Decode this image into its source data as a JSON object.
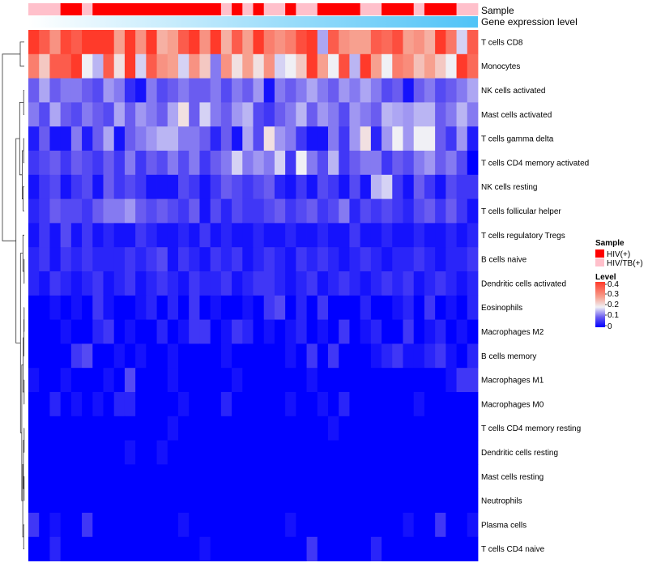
{
  "chart_data": {
    "type": "heatmap",
    "title": "",
    "annotations": {
      "sample": {
        "label": "Sample",
        "categories": [
          "HIV(+)",
          "HIV/TB(+)"
        ],
        "colors": {
          "HIV(+)": "#ff0000",
          "HIV/TB(+)": "#ffc0cb"
        },
        "per_column": [
          "HIV/TB(+)",
          "HIV/TB(+)",
          "HIV/TB(+)",
          "HIV(+)",
          "HIV(+)",
          "HIV/TB(+)",
          "HIV(+)",
          "HIV(+)",
          "HIV(+)",
          "HIV(+)",
          "HIV(+)",
          "HIV(+)",
          "HIV(+)",
          "HIV(+)",
          "HIV(+)",
          "HIV(+)",
          "HIV(+)",
          "HIV(+)",
          "HIV/TB(+)",
          "HIV(+)",
          "HIV/TB(+)",
          "HIV(+)",
          "HIV/TB(+)",
          "HIV/TB(+)",
          "HIV(+)",
          "HIV/TB(+)",
          "HIV/TB(+)",
          "HIV(+)",
          "HIV(+)",
          "HIV(+)",
          "HIV(+)",
          "HIV/TB(+)",
          "HIV/TB(+)",
          "HIV(+)",
          "HIV(+)",
          "HIV(+)",
          "HIV/TB(+)",
          "HIV(+)",
          "HIV(+)",
          "HIV(+)",
          "HIV/TB(+)",
          "HIV/TB(+)"
        ]
      },
      "gene_expression": {
        "label": "Gene expression level",
        "gradient": [
          "#ffffff",
          "#4fc3f7"
        ]
      }
    },
    "rows": [
      "T cells CD8",
      "Monocytes",
      "NK cells activated",
      "Mast cells activated",
      "T cells gamma delta",
      "T cells CD4 memory activated",
      "NK cells resting",
      "T cells follicular helper",
      "T cells regulatory  Tregs",
      "B cells naive",
      "Dendritic cells activated",
      "Eosinophils",
      "Macrophages M2",
      "B cells memory",
      "Macrophages M1",
      "Macrophages M0",
      "T cells CD4 memory resting",
      "Dendritic cells resting",
      "Mast cells resting",
      "Neutrophils",
      "Plasma cells",
      "T cells CD4 naive"
    ],
    "n_columns": 42,
    "row_means": [
      0.38,
      0.3,
      0.12,
      0.13,
      0.08,
      0.09,
      0.06,
      0.08,
      0.03,
      0.05,
      0.05,
      0.03,
      0.03,
      0.03,
      0.02,
      0.02,
      0.01,
      0.01,
      0.0,
      0.0,
      0.02,
      0.01
    ],
    "values": [
      [
        0.45,
        0.4,
        0.32,
        0.43,
        0.4,
        0.45,
        0.45,
        0.45,
        0.3,
        0.45,
        0.32,
        0.45,
        0.28,
        0.3,
        0.4,
        0.45,
        0.32,
        0.45,
        0.28,
        0.4,
        0.3,
        0.45,
        0.35,
        0.32,
        0.35,
        0.42,
        0.45,
        0.15,
        0.4,
        0.32,
        0.3,
        0.3,
        0.4,
        0.38,
        0.42,
        0.3,
        0.32,
        0.28,
        0.45,
        0.36,
        0.18,
        0.4
      ],
      [
        0.35,
        0.25,
        0.4,
        0.4,
        0.45,
        0.2,
        0.16,
        0.4,
        0.22,
        0.45,
        0.18,
        0.4,
        0.32,
        0.3,
        0.18,
        0.32,
        0.25,
        0.12,
        0.32,
        0.22,
        0.3,
        0.22,
        0.32,
        0.18,
        0.2,
        0.25,
        0.45,
        0.3,
        0.2,
        0.42,
        0.16,
        0.45,
        0.3,
        0.2,
        0.35,
        0.33,
        0.26,
        0.3,
        0.25,
        0.2,
        0.45,
        0.38
      ],
      [
        0.1,
        0.15,
        0.1,
        0.12,
        0.12,
        0.1,
        0.08,
        0.14,
        0.12,
        0.05,
        0.02,
        0.12,
        0.08,
        0.1,
        0.12,
        0.1,
        0.1,
        0.12,
        0.08,
        0.12,
        0.1,
        0.14,
        0.02,
        0.12,
        0.1,
        0.12,
        0.15,
        0.12,
        0.1,
        0.14,
        0.12,
        0.15,
        0.12,
        0.08,
        0.1,
        0.02,
        0.1,
        0.12,
        0.08,
        0.1,
        0.12,
        0.15
      ],
      [
        0.12,
        0.08,
        0.15,
        0.1,
        0.08,
        0.12,
        0.1,
        0.08,
        0.15,
        0.1,
        0.14,
        0.12,
        0.1,
        0.15,
        0.22,
        0.1,
        0.18,
        0.12,
        0.1,
        0.14,
        0.16,
        0.08,
        0.06,
        0.1,
        0.12,
        0.16,
        0.1,
        0.14,
        0.12,
        0.08,
        0.14,
        0.12,
        0.1,
        0.16,
        0.15,
        0.14,
        0.16,
        0.16,
        0.1,
        0.12,
        0.16,
        0.12
      ],
      [
        0.03,
        0.1,
        0.02,
        0.02,
        0.12,
        0.03,
        0.1,
        0.15,
        0.02,
        0.1,
        0.12,
        0.14,
        0.16,
        0.16,
        0.12,
        0.12,
        0.1,
        0.04,
        0.1,
        0.02,
        0.15,
        0.08,
        0.22,
        0.14,
        0.12,
        0.06,
        0.02,
        0.02,
        0.12,
        0.06,
        0.14,
        0.22,
        0.04,
        0.14,
        0.2,
        0.14,
        0.2,
        0.2,
        0.1,
        0.06,
        0.14,
        0.03
      ],
      [
        0.06,
        0.08,
        0.1,
        0.06,
        0.1,
        0.08,
        0.06,
        0.1,
        0.06,
        0.12,
        0.06,
        0.1,
        0.08,
        0.12,
        0.08,
        0.12,
        0.06,
        0.1,
        0.12,
        0.18,
        0.12,
        0.14,
        0.12,
        0.18,
        0.06,
        0.2,
        0.12,
        0.08,
        0.16,
        0.06,
        0.1,
        0.12,
        0.12,
        0.06,
        0.1,
        0.08,
        0.12,
        0.14,
        0.1,
        0.12,
        0.08,
        0.0
      ],
      [
        0.02,
        0.06,
        0.08,
        0.02,
        0.06,
        0.08,
        0.02,
        0.1,
        0.06,
        0.08,
        0.06,
        0.02,
        0.02,
        0.02,
        0.08,
        0.06,
        0.02,
        0.06,
        0.1,
        0.08,
        0.06,
        0.08,
        0.1,
        0.04,
        0.02,
        0.06,
        0.02,
        0.08,
        0.06,
        0.02,
        0.08,
        0.02,
        0.16,
        0.18,
        0.06,
        0.02,
        0.1,
        0.06,
        0.02,
        0.08,
        0.06,
        0.06
      ],
      [
        0.04,
        0.06,
        0.1,
        0.08,
        0.08,
        0.06,
        0.1,
        0.12,
        0.12,
        0.14,
        0.1,
        0.08,
        0.1,
        0.08,
        0.06,
        0.1,
        0.02,
        0.08,
        0.04,
        0.08,
        0.06,
        0.06,
        0.08,
        0.1,
        0.06,
        0.08,
        0.1,
        0.06,
        0.08,
        0.12,
        0.04,
        0.08,
        0.06,
        0.08,
        0.06,
        0.04,
        0.08,
        0.1,
        0.06,
        0.1,
        0.06,
        0.02
      ],
      [
        0.02,
        0.06,
        0.02,
        0.08,
        0.02,
        0.06,
        0.02,
        0.04,
        0.02,
        0.02,
        0.06,
        0.04,
        0.02,
        0.02,
        0.04,
        0.02,
        0.06,
        0.02,
        0.04,
        0.02,
        0.02,
        0.04,
        0.02,
        0.02,
        0.04,
        0.02,
        0.02,
        0.04,
        0.02,
        0.02,
        0.06,
        0.02,
        0.02,
        0.04,
        0.02,
        0.02,
        0.04,
        0.02,
        0.02,
        0.04,
        0.02,
        0.04
      ],
      [
        0.04,
        0.06,
        0.02,
        0.06,
        0.04,
        0.06,
        0.04,
        0.04,
        0.04,
        0.06,
        0.04,
        0.06,
        0.08,
        0.02,
        0.06,
        0.04,
        0.02,
        0.06,
        0.04,
        0.06,
        0.02,
        0.04,
        0.06,
        0.04,
        0.02,
        0.06,
        0.04,
        0.06,
        0.04,
        0.02,
        0.04,
        0.06,
        0.04,
        0.02,
        0.04,
        0.04,
        0.06,
        0.04,
        0.02,
        0.04,
        0.04,
        0.06
      ],
      [
        0.04,
        0.02,
        0.06,
        0.04,
        0.02,
        0.04,
        0.06,
        0.02,
        0.04,
        0.06,
        0.02,
        0.04,
        0.06,
        0.04,
        0.02,
        0.06,
        0.04,
        0.04,
        0.06,
        0.02,
        0.04,
        0.06,
        0.06,
        0.04,
        0.02,
        0.04,
        0.06,
        0.02,
        0.04,
        0.06,
        0.04,
        0.02,
        0.04,
        0.06,
        0.04,
        0.06,
        0.02,
        0.04,
        0.06,
        0.04,
        0.02,
        0.04
      ],
      [
        0.0,
        0.0,
        0.02,
        0.0,
        0.02,
        0.0,
        0.06,
        0.02,
        0.0,
        0.0,
        0.02,
        0.04,
        0.0,
        0.04,
        0.0,
        0.06,
        0.0,
        0.02,
        0.0,
        0.0,
        0.02,
        0.0,
        0.06,
        0.08,
        0.0,
        0.04,
        0.0,
        0.06,
        0.0,
        0.0,
        0.0,
        0.04,
        0.0,
        0.0,
        0.02,
        0.04,
        0.0,
        0.06,
        0.0,
        0.02,
        0.0,
        0.04
      ],
      [
        0.0,
        0.0,
        0.0,
        0.02,
        0.0,
        0.0,
        0.04,
        0.06,
        0.0,
        0.02,
        0.0,
        0.0,
        0.04,
        0.0,
        0.02,
        0.06,
        0.06,
        0.0,
        0.02,
        0.06,
        0.04,
        0.0,
        0.02,
        0.0,
        0.02,
        0.04,
        0.0,
        0.02,
        0.0,
        0.06,
        0.0,
        0.02,
        0.04,
        0.0,
        0.0,
        0.06,
        0.0,
        0.02,
        0.04,
        0.0,
        0.02,
        0.0
      ],
      [
        0.0,
        0.0,
        0.0,
        0.0,
        0.06,
        0.08,
        0.0,
        0.0,
        0.02,
        0.0,
        0.02,
        0.0,
        0.0,
        0.02,
        0.0,
        0.0,
        0.0,
        0.0,
        0.02,
        0.0,
        0.0,
        0.0,
        0.0,
        0.0,
        0.02,
        0.0,
        0.06,
        0.0,
        0.06,
        0.0,
        0.0,
        0.0,
        0.02,
        0.04,
        0.06,
        0.02,
        0.02,
        0.04,
        0.06,
        0.02,
        0.0,
        0.04
      ],
      [
        0.02,
        0.0,
        0.0,
        0.02,
        0.0,
        0.0,
        0.0,
        0.02,
        0.0,
        0.08,
        0.0,
        0.0,
        0.0,
        0.02,
        0.0,
        0.0,
        0.0,
        0.0,
        0.0,
        0.02,
        0.0,
        0.0,
        0.0,
        0.0,
        0.0,
        0.0,
        0.02,
        0.0,
        0.0,
        0.0,
        0.0,
        0.0,
        0.0,
        0.0,
        0.0,
        0.0,
        0.0,
        0.0,
        0.0,
        0.02,
        0.06,
        0.06
      ],
      [
        0.0,
        0.0,
        0.04,
        0.0,
        0.02,
        0.0,
        0.02,
        0.0,
        0.04,
        0.04,
        0.0,
        0.0,
        0.0,
        0.0,
        0.02,
        0.0,
        0.0,
        0.0,
        0.04,
        0.0,
        0.0,
        0.0,
        0.0,
        0.0,
        0.02,
        0.0,
        0.0,
        0.02,
        0.0,
        0.04,
        0.0,
        0.0,
        0.0,
        0.0,
        0.0,
        0.0,
        0.02,
        0.0,
        0.0,
        0.0,
        0.0,
        0.0
      ],
      [
        0.0,
        0.0,
        0.0,
        0.0,
        0.0,
        0.0,
        0.0,
        0.0,
        0.0,
        0.0,
        0.0,
        0.0,
        0.0,
        0.02,
        0.0,
        0.0,
        0.0,
        0.0,
        0.0,
        0.0,
        0.0,
        0.0,
        0.0,
        0.0,
        0.0,
        0.0,
        0.0,
        0.0,
        0.02,
        0.0,
        0.0,
        0.0,
        0.0,
        0.0,
        0.0,
        0.0,
        0.0,
        0.0,
        0.0,
        0.0,
        0.0,
        0.0
      ],
      [
        0.0,
        0.0,
        0.0,
        0.0,
        0.0,
        0.0,
        0.0,
        0.0,
        0.0,
        0.02,
        0.0,
        0.0,
        0.02,
        0.0,
        0.0,
        0.0,
        0.0,
        0.0,
        0.0,
        0.0,
        0.0,
        0.0,
        0.0,
        0.0,
        0.0,
        0.0,
        0.0,
        0.0,
        0.0,
        0.0,
        0.0,
        0.0,
        0.0,
        0.0,
        0.0,
        0.0,
        0.0,
        0.0,
        0.0,
        0.0,
        0.0,
        0.0
      ],
      [
        0.0,
        0.0,
        0.0,
        0.0,
        0.0,
        0.0,
        0.0,
        0.0,
        0.0,
        0.0,
        0.0,
        0.0,
        0.0,
        0.0,
        0.0,
        0.0,
        0.0,
        0.0,
        0.0,
        0.0,
        0.0,
        0.0,
        0.0,
        0.0,
        0.0,
        0.0,
        0.0,
        0.0,
        0.0,
        0.0,
        0.0,
        0.0,
        0.0,
        0.0,
        0.0,
        0.0,
        0.0,
        0.0,
        0.0,
        0.0,
        0.0,
        0.0
      ],
      [
        0.0,
        0.0,
        0.0,
        0.0,
        0.0,
        0.0,
        0.0,
        0.0,
        0.0,
        0.0,
        0.0,
        0.0,
        0.0,
        0.0,
        0.0,
        0.0,
        0.0,
        0.0,
        0.0,
        0.0,
        0.0,
        0.0,
        0.0,
        0.0,
        0.0,
        0.0,
        0.0,
        0.0,
        0.0,
        0.0,
        0.0,
        0.0,
        0.0,
        0.0,
        0.0,
        0.0,
        0.0,
        0.0,
        0.0,
        0.0,
        0.0,
        0.0
      ],
      [
        0.06,
        0.0,
        0.02,
        0.0,
        0.0,
        0.06,
        0.0,
        0.0,
        0.0,
        0.0,
        0.0,
        0.0,
        0.0,
        0.0,
        0.02,
        0.0,
        0.0,
        0.0,
        0.0,
        0.0,
        0.0,
        0.0,
        0.0,
        0.0,
        0.02,
        0.0,
        0.0,
        0.0,
        0.0,
        0.0,
        0.0,
        0.0,
        0.0,
        0.0,
        0.0,
        0.02,
        0.0,
        0.0,
        0.06,
        0.0,
        0.0,
        0.02
      ],
      [
        0.0,
        0.0,
        0.04,
        0.0,
        0.0,
        0.0,
        0.0,
        0.0,
        0.0,
        0.0,
        0.0,
        0.0,
        0.0,
        0.0,
        0.0,
        0.0,
        0.02,
        0.0,
        0.0,
        0.0,
        0.0,
        0.0,
        0.0,
        0.0,
        0.0,
        0.0,
        0.06,
        0.0,
        0.0,
        0.0,
        0.0,
        0.0,
        0.04,
        0.0,
        0.0,
        0.0,
        0.0,
        0.0,
        0.0,
        0.0,
        0.0,
        0.0
      ]
    ],
    "color_scale": {
      "label": "Level",
      "domain": [
        0,
        0.45
      ],
      "ticks": [
        "0.4",
        "0.3",
        "0.2",
        "0.1",
        "0"
      ],
      "stops": [
        {
          "value": 0,
          "color": "#0000ff"
        },
        {
          "value": 0.1,
          "color": "#6a5cf0"
        },
        {
          "value": 0.2,
          "color": "#f0f0f5"
        },
        {
          "value": 0.3,
          "color": "#f7a08f"
        },
        {
          "value": 0.45,
          "color": "#ff3a2a"
        }
      ]
    },
    "legend_position": "right",
    "row_dendrogram": true
  }
}
